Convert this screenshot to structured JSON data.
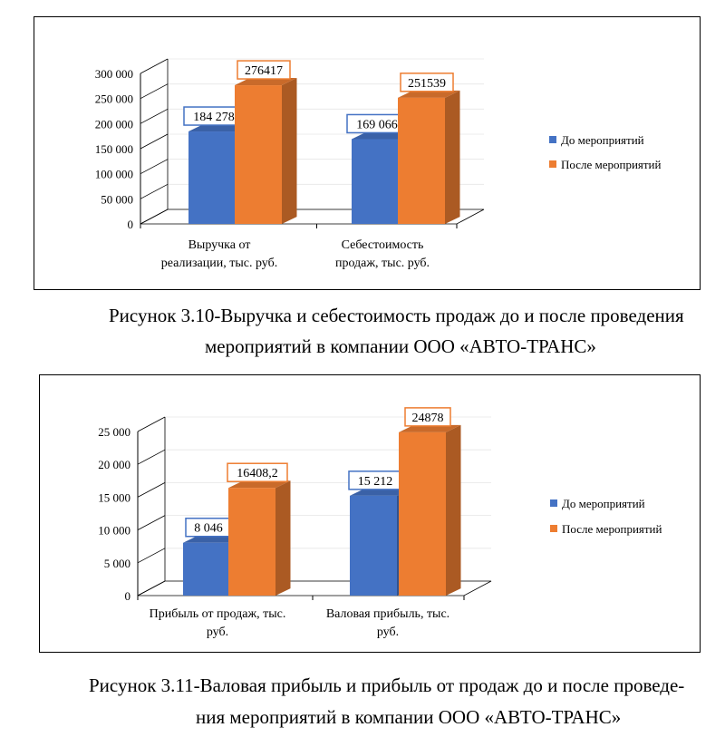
{
  "chart_data": [
    {
      "type": "bar",
      "categories": [
        "Выручка от реализации, тыс. руб.",
        "Себестоимость продаж, тыс. руб."
      ],
      "category_lines": [
        [
          "Выручка от",
          "реализации, тыс. руб."
        ],
        [
          "Себестоимость",
          "продаж, тыс. руб."
        ]
      ],
      "series": [
        {
          "name": "До мероприятий",
          "values": [
            184278,
            169066
          ],
          "labels": [
            "184 278",
            "169 066"
          ],
          "color": "#4472C4"
        },
        {
          "name": "После мероприятий",
          "values": [
            276417,
            251539
          ],
          "labels": [
            "276417",
            "251539"
          ],
          "color": "#ED7D31"
        }
      ],
      "yticks": [
        "0",
        "50 000",
        "100 000",
        "150 000",
        "200 000",
        "250 000",
        "300 000"
      ],
      "ylim": [
        0,
        300000
      ],
      "legend_position": "right",
      "style": "3d-clustered-column"
    },
    {
      "type": "bar",
      "categories": [
        "Прибыль от продаж, тыс. руб.",
        "Валовая прибыль, тыс. руб."
      ],
      "category_lines": [
        [
          "Прибыль от продаж, тыс.",
          "руб."
        ],
        [
          "Валовая прибыль, тыс.",
          "руб."
        ]
      ],
      "series": [
        {
          "name": "До мероприятий",
          "values": [
            8046,
            15212
          ],
          "labels": [
            "8 046",
            "15 212"
          ],
          "color": "#4472C4"
        },
        {
          "name": "После мероприятий",
          "values": [
            16408.2,
            24878
          ],
          "labels": [
            "16408,2",
            "24878"
          ],
          "color": "#ED7D31"
        }
      ],
      "yticks": [
        "0",
        "5 000",
        "10 000",
        "15 000",
        "20 000",
        "25 000"
      ],
      "ylim": [
        0,
        25000
      ],
      "legend_position": "right",
      "style": "3d-clustered-column"
    }
  ],
  "captions": [
    {
      "line1": "Рисунок 3.10-Выручка и себестоимость продаж до и после проведения",
      "line2": "мероприятий в компании ООО «АВТО-ТРАНС»"
    },
    {
      "line1": "Рисунок 3.11-Валовая прибыль и прибыль от продаж до и после проведе-",
      "line2": "ния мероприятий в компании ООО «АВТО-ТРАНС»"
    }
  ]
}
